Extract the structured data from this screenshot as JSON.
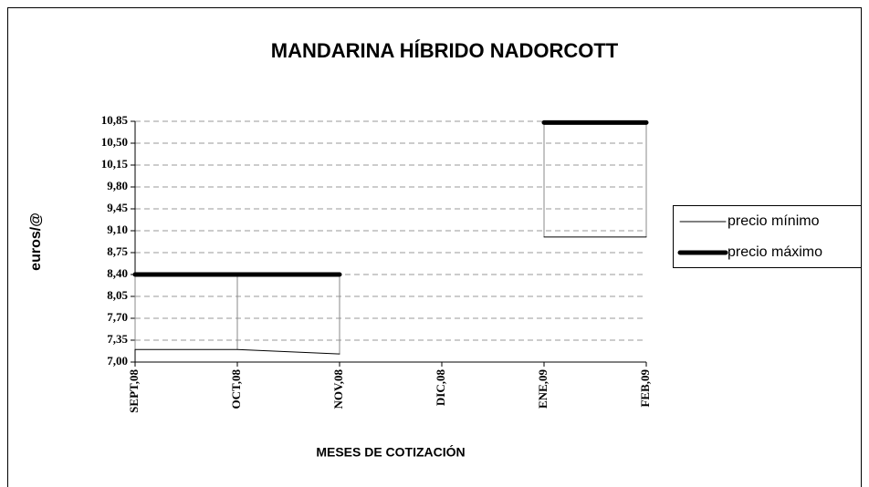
{
  "chart_data": {
    "type": "line",
    "title": "MANDARINA HÍBRIDO NADORCOTT",
    "x_label": "MESES DE COTIZACIÓN",
    "y_label": "euros/@",
    "categories": [
      "SEPT,08",
      "OCT,08",
      "NOV,08",
      "DIC,08",
      "ENE,09",
      "FEB,09"
    ],
    "series": [
      {
        "name": "precio mínimo",
        "color": "#000000",
        "values": [
          7.2,
          7.2,
          7.13,
          null,
          9.0,
          9.0
        ]
      },
      {
        "name": "precio máximo",
        "color": "#000000",
        "values": [
          8.4,
          8.4,
          8.4,
          null,
          10.83,
          10.83
        ]
      }
    ],
    "ylim": [
      7.0,
      10.85
    ],
    "yticks": [
      {
        "value": 7.0,
        "label": "7,00"
      },
      {
        "value": 7.35,
        "label": "7,35"
      },
      {
        "value": 7.7,
        "label": "7,70"
      },
      {
        "value": 8.05,
        "label": "8,05"
      },
      {
        "value": 8.4,
        "label": "8,40"
      },
      {
        "value": 8.75,
        "label": "8,75"
      },
      {
        "value": 9.1,
        "label": "9,10"
      },
      {
        "value": 9.45,
        "label": "9,45"
      },
      {
        "value": 9.8,
        "label": "9,80"
      },
      {
        "value": 10.15,
        "label": "10,15"
      },
      {
        "value": 10.5,
        "label": "10,50"
      },
      {
        "value": 10.85,
        "label": "10,85"
      }
    ],
    "grid": true,
    "legend": "right"
  }
}
